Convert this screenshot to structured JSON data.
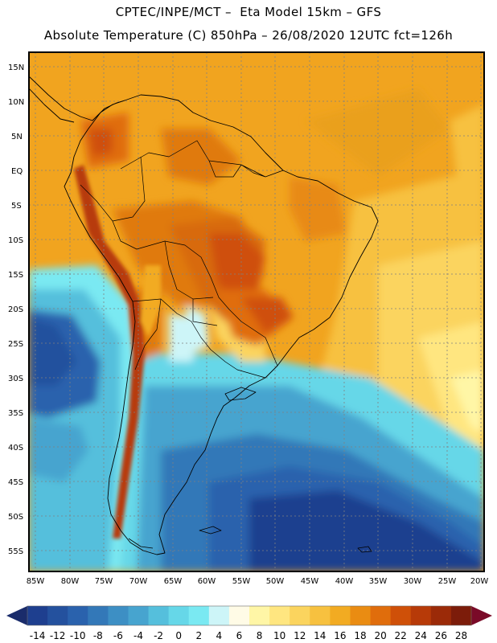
{
  "header": {
    "line1": "CPTEC/INPE/MCT –  Eta Model 15km – GFS",
    "line2": "Absolute Temperature (C) 850hPa – 26/08/2020 12UTC fct=126h"
  },
  "map": {
    "lat_labels": [
      "15N",
      "10N",
      "5N",
      "EQ",
      "5S",
      "10S",
      "15S",
      "20S",
      "25S",
      "30S",
      "35S",
      "40S",
      "45S",
      "50S",
      "55S"
    ],
    "lon_labels": [
      "85W",
      "80W",
      "75W",
      "70W",
      "65W",
      "60W",
      "55W",
      "50W",
      "45W",
      "40W",
      "35W",
      "30W",
      "25W",
      "20W"
    ]
  },
  "colorbar": {
    "labels": [
      "-14",
      "-12",
      "-10",
      "-8",
      "-6",
      "-4",
      "-2",
      "0",
      "2",
      "4",
      "6",
      "8",
      "10",
      "12",
      "14",
      "16",
      "18",
      "20",
      "22",
      "24",
      "26",
      "28"
    ],
    "colors": [
      "#1e3f8f",
      "#24519e",
      "#2a62ad",
      "#3378b8",
      "#3d8fc4",
      "#47a4cf",
      "#55bfdc",
      "#66d7e8",
      "#7ae9f2",
      "#cdf5f8",
      "#fffbe6",
      "#fff6a6",
      "#ffe680",
      "#fbd45e",
      "#f7c13f",
      "#f2ab22",
      "#ea8c12",
      "#e06d0c",
      "#cf5008",
      "#b73a08",
      "#9b2a08",
      "#7c1c0a"
    ],
    "under_color": "#1a2c6b",
    "over_color": "#7a0a28"
  }
}
